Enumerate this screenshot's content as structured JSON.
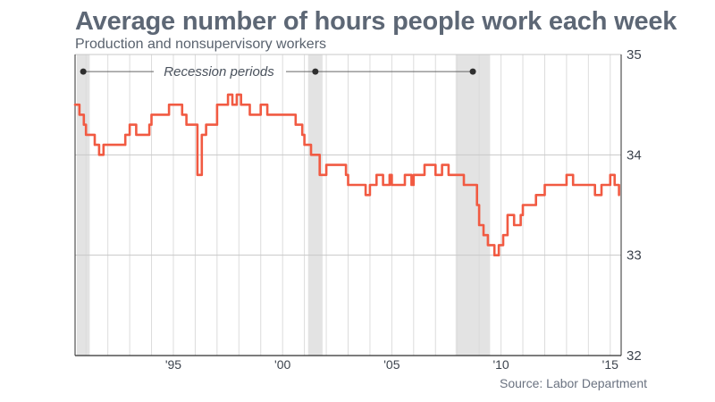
{
  "chart_data": {
    "type": "line",
    "title": "Average number of hours people work each week",
    "subtitle": "Production and nonsupervisory workers",
    "source": "Source: Labor Department",
    "xlabel": "",
    "ylabel": "",
    "xlim": [
      1990.5,
      2015.5
    ],
    "ylim": [
      32,
      35
    ],
    "y_ticks": [
      32,
      33,
      34,
      35
    ],
    "y_tick_labels": [
      "32",
      "33",
      "34",
      "35"
    ],
    "x_ticks": [
      1995,
      2000,
      2005,
      2010,
      2015
    ],
    "x_tick_labels": [
      "'95",
      "'00",
      "'05",
      "'10",
      "'15"
    ],
    "grid": "vertical yearly lines and horizontal lines at each y tick",
    "line_color": "#f15a42",
    "recession_color": "#e3e3e3",
    "recession_label": "Recession periods",
    "recessions": [
      {
        "start": 1990.58,
        "end": 1991.17
      },
      {
        "start": 2001.17,
        "end": 2001.83
      },
      {
        "start": 2007.92,
        "end": 2009.5
      }
    ],
    "series": [
      {
        "values": [
          [
            1990.5,
            34.5
          ],
          [
            1990.7,
            34.4
          ],
          [
            1990.9,
            34.3
          ],
          [
            1991.0,
            34.2
          ],
          [
            1991.2,
            34.2
          ],
          [
            1991.4,
            34.1
          ],
          [
            1991.6,
            34.0
          ],
          [
            1991.8,
            34.1
          ],
          [
            1992.1,
            34.1
          ],
          [
            1992.5,
            34.1
          ],
          [
            1992.8,
            34.2
          ],
          [
            1993.0,
            34.3
          ],
          [
            1993.3,
            34.2
          ],
          [
            1993.6,
            34.2
          ],
          [
            1993.9,
            34.3
          ],
          [
            1994.0,
            34.4
          ],
          [
            1994.4,
            34.4
          ],
          [
            1994.6,
            34.4
          ],
          [
            1994.8,
            34.5
          ],
          [
            1995.0,
            34.5
          ],
          [
            1995.2,
            34.5
          ],
          [
            1995.4,
            34.4
          ],
          [
            1995.6,
            34.3
          ],
          [
            1995.9,
            34.3
          ],
          [
            1996.0,
            34.3
          ],
          [
            1996.1,
            33.8
          ],
          [
            1996.3,
            34.2
          ],
          [
            1996.5,
            34.3
          ],
          [
            1996.8,
            34.3
          ],
          [
            1997.0,
            34.5
          ],
          [
            1997.3,
            34.5
          ],
          [
            1997.5,
            34.6
          ],
          [
            1997.7,
            34.5
          ],
          [
            1997.9,
            34.6
          ],
          [
            1998.1,
            34.5
          ],
          [
            1998.3,
            34.5
          ],
          [
            1998.5,
            34.4
          ],
          [
            1998.8,
            34.4
          ],
          [
            1999.0,
            34.5
          ],
          [
            1999.3,
            34.4
          ],
          [
            1999.6,
            34.4
          ],
          [
            1999.9,
            34.4
          ],
          [
            2000.0,
            34.4
          ],
          [
            2000.3,
            34.4
          ],
          [
            2000.6,
            34.3
          ],
          [
            2000.9,
            34.2
          ],
          [
            2001.0,
            34.1
          ],
          [
            2001.3,
            34.0
          ],
          [
            2001.5,
            34.0
          ],
          [
            2001.7,
            33.8
          ],
          [
            2001.9,
            33.8
          ],
          [
            2002.0,
            33.9
          ],
          [
            2002.3,
            33.9
          ],
          [
            2002.6,
            33.9
          ],
          [
            2002.9,
            33.8
          ],
          [
            2003.0,
            33.7
          ],
          [
            2003.2,
            33.7
          ],
          [
            2003.5,
            33.7
          ],
          [
            2003.8,
            33.6
          ],
          [
            2004.0,
            33.7
          ],
          [
            2004.3,
            33.8
          ],
          [
            2004.6,
            33.7
          ],
          [
            2004.9,
            33.8
          ],
          [
            2005.0,
            33.7
          ],
          [
            2005.3,
            33.7
          ],
          [
            2005.6,
            33.8
          ],
          [
            2005.9,
            33.7
          ],
          [
            2006.0,
            33.8
          ],
          [
            2006.3,
            33.8
          ],
          [
            2006.5,
            33.9
          ],
          [
            2006.8,
            33.9
          ],
          [
            2007.0,
            33.8
          ],
          [
            2007.3,
            33.9
          ],
          [
            2007.6,
            33.8
          ],
          [
            2007.9,
            33.8
          ],
          [
            2008.0,
            33.8
          ],
          [
            2008.3,
            33.7
          ],
          [
            2008.6,
            33.7
          ],
          [
            2008.9,
            33.5
          ],
          [
            2009.0,
            33.3
          ],
          [
            2009.2,
            33.2
          ],
          [
            2009.4,
            33.1
          ],
          [
            2009.7,
            33.0
          ],
          [
            2009.9,
            33.1
          ],
          [
            2010.1,
            33.2
          ],
          [
            2010.3,
            33.4
          ],
          [
            2010.6,
            33.3
          ],
          [
            2010.9,
            33.4
          ],
          [
            2011.0,
            33.5
          ],
          [
            2011.3,
            33.5
          ],
          [
            2011.6,
            33.6
          ],
          [
            2011.9,
            33.6
          ],
          [
            2012.0,
            33.7
          ],
          [
            2012.3,
            33.7
          ],
          [
            2012.6,
            33.7
          ],
          [
            2012.9,
            33.7
          ],
          [
            2013.0,
            33.8
          ],
          [
            2013.3,
            33.7
          ],
          [
            2013.6,
            33.7
          ],
          [
            2013.9,
            33.7
          ],
          [
            2014.0,
            33.7
          ],
          [
            2014.3,
            33.6
          ],
          [
            2014.6,
            33.7
          ],
          [
            2014.9,
            33.7
          ],
          [
            2015.0,
            33.8
          ],
          [
            2015.2,
            33.7
          ],
          [
            2015.4,
            33.6
          ]
        ]
      }
    ]
  }
}
